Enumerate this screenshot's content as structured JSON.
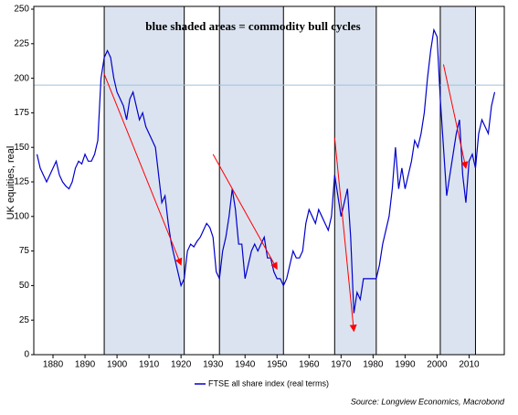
{
  "chart_data": {
    "type": "line",
    "annotation": "blue shaded areas = commodity bull cycles",
    "y_label": "UK equities, real",
    "source": "Source: Longview Economics, Macrobond",
    "xlim": [
      1874,
      2021
    ],
    "ylim": [
      0,
      252
    ],
    "xticks": [
      1880,
      1890,
      1900,
      1910,
      1920,
      1930,
      1940,
      1950,
      1960,
      1970,
      1980,
      1990,
      2000,
      2010
    ],
    "yticks": [
      0,
      25,
      50,
      75,
      100,
      125,
      150,
      175,
      200,
      225,
      250
    ],
    "shaded_periods": [
      [
        1896,
        1921
      ],
      [
        1932,
        1952
      ],
      [
        1968,
        1981
      ],
      [
        2001,
        2012
      ]
    ],
    "shade_color": "#dbe3f0",
    "reference_line": 195,
    "reference_color": "#9cc3dc",
    "arrows": [
      [
        1896,
        203,
        1920,
        65
      ],
      [
        1930,
        145,
        1950,
        62
      ],
      [
        1968,
        157,
        1974,
        17
      ],
      [
        2002,
        210,
        2009,
        135
      ]
    ],
    "arrow_color": "#ff0000",
    "x": [
      1875,
      1876,
      1877,
      1878,
      1879,
      1880,
      1881,
      1882,
      1883,
      1884,
      1885,
      1886,
      1887,
      1888,
      1889,
      1890,
      1891,
      1892,
      1893,
      1894,
      1895,
      1896,
      1897,
      1898,
      1899,
      1900,
      1901,
      1902,
      1903,
      1904,
      1905,
      1906,
      1907,
      1908,
      1909,
      1910,
      1911,
      1912,
      1913,
      1914,
      1915,
      1916,
      1917,
      1918,
      1919,
      1920,
      1921,
      1922,
      1923,
      1924,
      1925,
      1926,
      1927,
      1928,
      1929,
      1930,
      1931,
      1932,
      1933,
      1934,
      1935,
      1936,
      1937,
      1938,
      1939,
      1940,
      1941,
      1942,
      1943,
      1944,
      1945,
      1946,
      1947,
      1948,
      1949,
      1950,
      1951,
      1952,
      1953,
      1954,
      1955,
      1956,
      1957,
      1958,
      1959,
      1960,
      1961,
      1962,
      1963,
      1964,
      1965,
      1966,
      1967,
      1968,
      1969,
      1970,
      1971,
      1972,
      1973,
      1974,
      1975,
      1976,
      1977,
      1978,
      1979,
      1980,
      1981,
      1982,
      1983,
      1984,
      1985,
      1986,
      1987,
      1988,
      1989,
      1990,
      1991,
      1992,
      1993,
      1994,
      1995,
      1996,
      1997,
      1998,
      1999,
      2000,
      2001,
      2002,
      2003,
      2004,
      2005,
      2006,
      2007,
      2008,
      2009,
      2010,
      2011,
      2012,
      2013,
      2014,
      2015,
      2016,
      2017,
      2018
    ],
    "series": [
      {
        "name": "FTSE all share index (real terms)",
        "color": "#0000cc",
        "values": [
          145,
          135,
          130,
          125,
          130,
          135,
          140,
          130,
          125,
          122,
          120,
          125,
          135,
          140,
          138,
          145,
          140,
          140,
          145,
          155,
          200,
          215,
          220,
          215,
          200,
          190,
          185,
          180,
          170,
          185,
          190,
          180,
          170,
          175,
          165,
          160,
          155,
          150,
          130,
          110,
          115,
          95,
          80,
          70,
          60,
          50,
          55,
          75,
          80,
          78,
          82,
          85,
          90,
          95,
          92,
          85,
          60,
          55,
          75,
          85,
          100,
          120,
          105,
          80,
          80,
          55,
          65,
          75,
          80,
          75,
          80,
          85,
          70,
          70,
          60,
          55,
          55,
          50,
          55,
          65,
          75,
          70,
          70,
          75,
          95,
          105,
          100,
          95,
          105,
          100,
          95,
          90,
          100,
          130,
          115,
          100,
          110,
          120,
          85,
          30,
          45,
          40,
          55,
          55,
          55,
          55,
          55,
          65,
          80,
          90,
          100,
          120,
          150,
          120,
          135,
          120,
          130,
          140,
          155,
          150,
          160,
          175,
          200,
          220,
          235,
          230,
          185,
          150,
          115,
          130,
          145,
          160,
          170,
          130,
          110,
          140,
          145,
          135,
          160,
          170,
          165,
          160,
          180,
          190
        ]
      }
    ]
  }
}
